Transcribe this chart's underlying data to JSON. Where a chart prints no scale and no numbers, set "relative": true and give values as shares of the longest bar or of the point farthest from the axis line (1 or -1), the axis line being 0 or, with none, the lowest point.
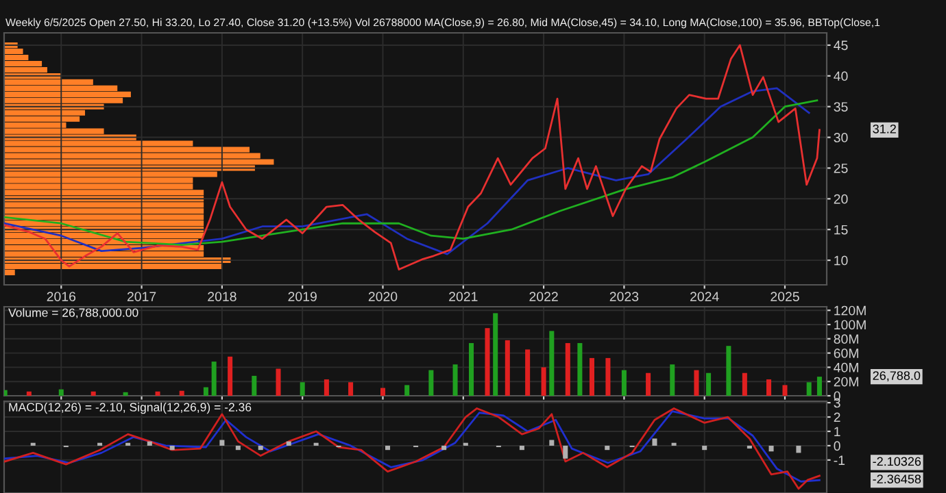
{
  "chart_data": [
    {
      "type": "line",
      "title": "Weekly 6/5/2025 Open 27.50, Hi 33.20, Lo 27.40, Close 31.20 (+13.5%) Vol 26788000 MA(Close,9) = 26.80, Mid MA(Close,45) = 34.10, Long MA(Close,100) = 35.96, BBTop(Close,1",
      "xlim": [
        2015.29,
        2025.52
      ],
      "ylim": [
        6,
        47
      ],
      "xticks": [
        2016,
        2017,
        2018,
        2019,
        2020,
        2021,
        2022,
        2023,
        2024,
        2025
      ],
      "yticks": [
        10,
        15,
        20,
        25,
        30,
        35,
        40,
        45
      ],
      "grid": true,
      "series": [
        {
          "color": "#2030c0",
          "x": [
            2015.3,
            2016.0,
            2016.5,
            2017.0,
            2018.0,
            2018.5,
            2019.0,
            2019.8,
            2020.3,
            2020.8,
            2021.3,
            2021.8,
            2022.3,
            2022.9,
            2023.3,
            2023.8,
            2024.2,
            2024.6,
            2024.9,
            2025.3
          ],
          "values": [
            16,
            14,
            11.5,
            12,
            13.5,
            15.5,
            15.5,
            17.5,
            13.5,
            11,
            16,
            23,
            25,
            23,
            24,
            30,
            35,
            37.5,
            38,
            34
          ]
        },
        {
          "color": "#20b020",
          "x": [
            2015.3,
            2016.0,
            2016.8,
            2017.5,
            2018.0,
            2019.0,
            2019.5,
            2020.2,
            2020.6,
            2021.0,
            2021.6,
            2022.2,
            2023.0,
            2023.6,
            2024.0,
            2024.6,
            2025.0,
            2025.4
          ],
          "values": [
            17,
            16,
            13,
            12.5,
            13,
            15,
            16,
            16,
            14,
            13.5,
            15,
            18,
            21.5,
            23.5,
            26,
            30,
            35,
            36
          ]
        },
        {
          "color": "#e83030",
          "x": [
            2015.3,
            2015.6,
            2015.8,
            2016.0,
            2016.1,
            2016.3,
            2016.5,
            2016.7,
            2016.9,
            2017.2,
            2017.5,
            2017.7,
            2017.85,
            2018.0,
            2018.1,
            2018.3,
            2018.5,
            2018.8,
            2019.0,
            2019.3,
            2019.5,
            2019.7,
            2019.9,
            2020.1,
            2020.2,
            2020.5,
            2020.63,
            2020.84,
            2021.06,
            2021.22,
            2021.43,
            2021.59,
            2021.86,
            2022.02,
            2022.17,
            2022.27,
            2022.43,
            2022.54,
            2022.65,
            2022.86,
            2023.02,
            2023.22,
            2023.33,
            2023.44,
            2023.65,
            2023.81,
            2024.02,
            2024.17,
            2024.33,
            2024.44,
            2024.6,
            2024.73,
            2024.92,
            2025.13,
            2025.27,
            2025.4,
            2025.43
          ],
          "values": [
            15.7,
            14.6,
            13.5,
            10,
            9,
            10.7,
            12.2,
            14.4,
            11.3,
            12.4,
            12.2,
            11.7,
            16.6,
            22.7,
            18.7,
            15,
            13.5,
            16.6,
            14.4,
            18.7,
            19,
            16.6,
            14.6,
            12.8,
            8.5,
            10.2,
            10.7,
            11.7,
            18.7,
            20.9,
            26.6,
            22.3,
            26.6,
            28.2,
            36.3,
            21.6,
            26.6,
            21.6,
            25.3,
            17.2,
            21.6,
            25.3,
            24.4,
            29.7,
            34.7,
            36.9,
            36.3,
            36.3,
            42.8,
            45,
            36.9,
            39.8,
            32.5,
            34.7,
            22.3,
            26.6,
            31.2
          ]
        }
      ],
      "annotations": [
        "31.2"
      ]
    },
    {
      "type": "bar",
      "orientation": "horizontal",
      "relative": true,
      "color": "#ff7f27",
      "tick_labels": false,
      "categories": [
        null,
        null,
        null,
        null,
        null,
        null,
        null,
        null,
        null,
        null,
        null,
        null,
        null,
        null,
        null,
        null,
        null,
        null,
        null,
        null,
        null,
        null,
        null,
        null,
        null,
        null,
        null,
        null,
        null,
        null,
        null,
        null,
        null,
        null,
        null,
        null,
        null,
        null
      ],
      "values": [
        0.05,
        0.07,
        0.09,
        0.14,
        0.16,
        0.21,
        0.33,
        0.42,
        0.47,
        0.44,
        0.37,
        0.3,
        0.28,
        0.23,
        0.37,
        0.49,
        0.7,
        0.91,
        0.95,
        1,
        0.93,
        0.79,
        0.7,
        0.7,
        0.74,
        0.74,
        0.74,
        0.74,
        0.74,
        0.74,
        0.74,
        0.74,
        0.72,
        0.74,
        0.74,
        0.84,
        0.81,
        0.04
      ]
    },
    {
      "type": "bar",
      "title": "Volume = 26,788,000.00",
      "xlim": [
        2015.29,
        2025.52
      ],
      "ylim": [
        0,
        125
      ],
      "yticks": [
        0,
        {
          "value": 20,
          "label": "20M"
        },
        {
          "value": 40,
          "label": "40M"
        },
        {
          "value": 60,
          "label": "60M"
        },
        {
          "value": 80,
          "label": "80M"
        },
        {
          "value": 100,
          "label": "100M"
        },
        {
          "value": 120,
          "label": "120M"
        }
      ],
      "tick_labels": "y",
      "grid": true,
      "x": [
        2015.3,
        2015.6,
        2016.0,
        2016.4,
        2016.8,
        2017.2,
        2017.5,
        2017.8,
        2017.9,
        2018.1,
        2018.4,
        2018.7,
        2019.0,
        2019.3,
        2019.6,
        2020.0,
        2020.3,
        2020.6,
        2020.9,
        2021.1,
        2021.3,
        2021.4,
        2021.55,
        2021.8,
        2022.0,
        2022.1,
        2022.3,
        2022.45,
        2022.6,
        2022.8,
        2023.0,
        2023.3,
        2023.6,
        2023.9,
        2024.05,
        2024.3,
        2024.5,
        2024.8,
        2025.0,
        2025.3,
        2025.43
      ],
      "values": [
        8,
        6,
        9,
        6,
        5,
        6,
        7,
        12,
        48,
        55,
        28,
        38,
        19,
        23,
        19,
        11,
        15,
        36,
        44,
        74,
        95,
        116,
        78,
        65,
        40,
        91,
        74,
        74,
        53,
        53,
        36,
        32,
        44,
        36,
        32,
        70,
        32,
        23,
        15,
        19,
        26.8
      ],
      "colors": [
        "#20a020",
        "#e02020",
        "#20a020",
        "#e02020",
        "#20a020",
        "#e02020",
        "#e02020",
        "#20a020",
        "#20a020",
        "#e02020",
        "#20a020",
        "#e02020",
        "#20a020",
        "#e02020",
        "#e02020",
        "#e02020",
        "#20a020",
        "#20a020",
        "#20a020",
        "#20a020",
        "#e02020",
        "#20a020",
        "#e02020",
        "#e02020",
        "#e02020",
        "#20a020",
        "#e02020",
        "#20a020",
        "#e02020",
        "#e02020",
        "#20a020",
        "#e02020",
        "#20a020",
        "#e02020",
        "#20a020",
        "#20a020",
        "#e02020",
        "#e02020",
        "#e02020",
        "#20a020",
        "#20a020"
      ],
      "annotations": [
        "26,788.0"
      ]
    },
    {
      "type": "line",
      "title": "MACD(12,26) = -2.10, Signal(12,26,9) = -2.36",
      "xlim": [
        2015.29,
        2025.52
      ],
      "ylim": [
        -3.3,
        3.1
      ],
      "yticks": [
        {
          "value": -1,
          "label": "-1"
        },
        0,
        1,
        2,
        3
      ],
      "tick_labels": "y",
      "grid": true,
      "series": [
        {
          "type": "bar",
          "color": "#b0b0b0",
          "x": [
            2015.65,
            2016.06,
            2016.48,
            2016.83,
            2017.1,
            2017.38,
            2018.0,
            2018.2,
            2018.48,
            2018.83,
            2019.17,
            2019.45,
            2020.06,
            2020.41,
            2020.76,
            2021.03,
            2021.44,
            2021.73,
            2022.1,
            2022.27,
            2022.79,
            2023.1,
            2023.38,
            2023.62,
            2024.0,
            2024.56,
            2024.83,
            2025.17
          ],
          "values": [
            0.2,
            -0.1,
            0.2,
            0.2,
            0.3,
            -0.3,
            0.4,
            -0.3,
            -0.3,
            0.3,
            0.2,
            -0.1,
            -0.3,
            -0.1,
            -0.3,
            0.2,
            -0.1,
            -0.3,
            0.4,
            -0.9,
            -0.3,
            -0.1,
            0.5,
            0.2,
            -0.3,
            -0.2,
            -0.4,
            -0.5
          ]
        },
        {
          "type": "line",
          "color": "#2030d0",
          "x": [
            2015.3,
            2015.7,
            2016.1,
            2016.5,
            2016.9,
            2017.3,
            2017.8,
            2018.05,
            2018.3,
            2018.6,
            2019.2,
            2019.6,
            2020.1,
            2020.5,
            2020.9,
            2021.2,
            2021.5,
            2021.8,
            2022.15,
            2022.35,
            2022.8,
            2023.2,
            2023.6,
            2024.0,
            2024.3,
            2024.6,
            2024.9,
            2025.2,
            2025.43
          ],
          "values": [
            -0.9,
            -0.7,
            -1.2,
            -0.5,
            0.6,
            0,
            -0.1,
            1.8,
            0.6,
            -0.4,
            0.8,
            0,
            -1.5,
            -1.0,
            0.2,
            2.3,
            2.1,
            1.0,
            1.8,
            -0.2,
            -1.2,
            -0.4,
            2.4,
            1.9,
            1.9,
            0.7,
            -1.6,
            -2.5,
            -2.4
          ]
        },
        {
          "type": "line",
          "color": "#d02020",
          "x": [
            2015.3,
            2015.65,
            2016.06,
            2016.48,
            2016.83,
            2017.1,
            2017.38,
            2017.73,
            2018.0,
            2018.2,
            2018.48,
            2018.83,
            2019.17,
            2019.45,
            2019.73,
            2020.06,
            2020.41,
            2020.76,
            2021.03,
            2021.17,
            2021.44,
            2021.73,
            2021.94,
            2022.1,
            2022.27,
            2022.49,
            2022.79,
            2023.1,
            2023.38,
            2023.62,
            2024.0,
            2024.29,
            2024.56,
            2024.83,
            2025.03,
            2025.17,
            2025.28,
            2025.43
          ],
          "values": [
            -1.1,
            -0.5,
            -1.3,
            -0.3,
            0.8,
            0.3,
            -0.3,
            -0.2,
            2.2,
            0.3,
            -0.7,
            0.3,
            1.0,
            -0.1,
            -0.3,
            -1.8,
            -1.1,
            -0.1,
            2.0,
            2.6,
            2.0,
            0.8,
            1.2,
            2.2,
            -1.1,
            -0.5,
            -1.5,
            -0.5,
            1.8,
            2.6,
            1.6,
            2.0,
            0.5,
            -2.0,
            -1.8,
            -3.0,
            -2.4,
            -2.1
          ]
        }
      ],
      "annotations": [
        "-2.10326",
        "-2.36458"
      ]
    }
  ]
}
